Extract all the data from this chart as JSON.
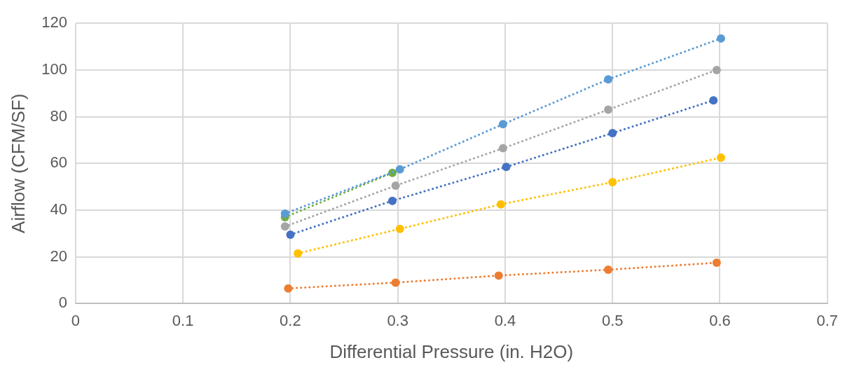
{
  "chart_data": {
    "type": "line",
    "xlabel": "Differential Pressure (in. H2O)",
    "ylabel": "Airflow (CFM/SF)",
    "xlim": [
      0,
      0.7
    ],
    "xticks": [
      0,
      0.1,
      0.2,
      0.3,
      0.4,
      0.5,
      0.6,
      0.7
    ],
    "ylim": [
      0,
      120
    ],
    "yticks": [
      0,
      20,
      40,
      60,
      80,
      100,
      120
    ],
    "grid": true,
    "legend": false,
    "marker": "circle",
    "line_style": "dotted",
    "series": [
      {
        "color": "#ed7d31",
        "x": [
          0.198,
          0.298,
          0.394,
          0.496,
          0.597
        ],
        "values": [
          6.5,
          9,
          12,
          14.5,
          17.5
        ]
      },
      {
        "color": "#ffc000",
        "x": [
          0.207,
          0.302,
          0.396,
          0.5,
          0.601
        ],
        "values": [
          21.5,
          32,
          42.5,
          52,
          62.5
        ]
      },
      {
        "color": "#4472c4",
        "x": [
          0.2,
          0.295,
          0.401,
          0.5,
          0.594
        ],
        "values": [
          29.5,
          44,
          58.5,
          73,
          87
        ]
      },
      {
        "color": "#a5a5a5",
        "x": [
          0.195,
          0.298,
          0.398,
          0.496,
          0.597
        ],
        "values": [
          33,
          50.5,
          66.5,
          83,
          100
        ]
      },
      {
        "color": "#70ad47",
        "x": [
          0.195,
          0.295
        ],
        "values": [
          37,
          56
        ]
      },
      {
        "color": "#5b9bd5",
        "x": [
          0.195,
          0.302,
          0.398,
          0.496,
          0.601
        ],
        "values": [
          38.5,
          57.5,
          76.8,
          96,
          113.5
        ]
      }
    ]
  }
}
